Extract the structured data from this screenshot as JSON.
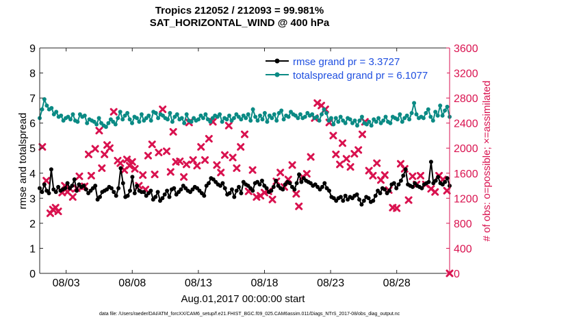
{
  "chart_data": {
    "type": "line",
    "title": "Tropics 212052 / 212093 = 99.981%",
    "subtitle": "SAT_HORIZONTAL_WIND @ 400 hPa",
    "xlabel": "Aug.01,2017 00:00:00 start",
    "ylabel": "rmse and totalspread",
    "ylabel_right": "# of obs: o=possible; ×=assimilated",
    "footnote": "data file: /Users/raeder/DAI/ATM_forcXX/CAM6_setup/f.e21.FHIST_BGC.f09_025.CAM6assim.011/Diags_NTrS_2017-08/obs_diag_output.nc",
    "xlim": [
      1.0,
      32.0
    ],
    "xticks": [
      3,
      8,
      13,
      18,
      23,
      28
    ],
    "xtick_labels": [
      "08/03",
      "08/08",
      "08/13",
      "08/18",
      "08/23",
      "08/28"
    ],
    "ylim": [
      0,
      9
    ],
    "yticks": [
      0,
      1,
      2,
      3,
      4,
      5,
      6,
      7,
      8,
      9
    ],
    "ylim_right": [
      0,
      3600
    ],
    "yticks_right": [
      0,
      400,
      800,
      1200,
      1600,
      2000,
      2400,
      2800,
      3200,
      3600
    ],
    "colors": {
      "rmse": "#000000",
      "spread": "#0a8a84",
      "obs": "#d9124f",
      "axis": "#222222",
      "legend_text": "#1f4fe0"
    },
    "series": [
      {
        "name": "rmse grand pr = 3.3727",
        "axis": "left",
        "marker": "circle",
        "values": [
          3.4,
          3.25,
          3.55,
          3.3,
          3.2,
          4.15,
          3.35,
          3.25,
          3.45,
          3.3,
          3.35,
          3.4,
          3.6,
          3.4,
          3.5,
          3.75,
          3.3,
          3.55,
          3.45,
          3.5,
          3.35,
          3.2,
          3.3,
          3.4,
          3.5,
          2.95,
          3.05,
          3.25,
          3.3,
          3.35,
          3.45,
          3.4,
          3.25,
          3.1,
          3.4,
          4.2,
          3.6,
          3.05,
          3.1,
          3.3,
          3.85,
          3.2,
          3.5,
          3.3,
          3.25,
          3.25,
          3.1,
          3.2,
          3.3,
          2.95,
          3.05,
          3.25,
          2.9,
          3.0,
          3.15,
          3.3,
          3.05,
          3.35,
          3.4,
          3.15,
          3.25,
          3.35,
          3.5,
          3.4,
          3.3,
          3.25,
          3.35,
          3.45,
          3.4,
          3.3,
          3.2,
          3.1,
          3.5,
          3.6,
          3.8,
          3.75,
          3.65,
          3.55,
          3.5,
          3.6,
          3.4,
          3.15,
          3.2,
          3.35,
          3.05,
          3.3,
          3.45,
          3.2,
          3.65,
          3.55,
          3.5,
          3.4,
          3.3,
          3.6,
          3.65,
          3.55,
          3.7,
          3.5,
          3.4,
          3.25,
          3.3,
          3.45,
          3.7,
          3.5,
          3.4,
          3.35,
          3.55,
          3.65,
          3.6,
          3.45,
          3.35,
          3.6,
          3.95,
          3.65,
          3.8,
          3.7,
          3.65,
          3.6,
          3.5,
          3.55,
          3.45,
          3.35,
          3.45,
          3.6,
          3.4,
          3.3,
          3.05,
          3.0,
          2.9,
          3.0,
          3.05,
          2.9,
          3.1,
          2.95,
          3.05,
          3.0,
          3.1,
          3.15,
          2.95,
          2.75,
          2.9,
          3.05,
          3.0,
          2.85,
          2.9,
          3.1,
          3.3,
          3.2,
          3.4,
          3.35,
          3.2,
          3.3,
          3.55,
          3.6,
          3.4,
          3.55,
          3.7,
          3.9,
          4.15,
          3.55,
          3.5,
          3.45,
          3.6,
          3.5,
          3.45,
          3.4,
          3.55,
          3.6,
          3.65,
          4.45,
          3.6,
          3.7,
          3.85,
          3.6,
          3.55,
          3.65,
          3.8,
          3.5
        ]
      },
      {
        "name": "totalspread grand pr = 6.1077",
        "axis": "left",
        "marker": "circle",
        "values": [
          6.2,
          6.55,
          6.95,
          6.7,
          6.55,
          6.6,
          6.35,
          6.45,
          6.25,
          6.3,
          6.1,
          6.2,
          6.25,
          6.15,
          6.35,
          6.1,
          6.05,
          6.35,
          6.25,
          6.3,
          6.0,
          6.15,
          6.1,
          6.05,
          5.95,
          6.2,
          6.0,
          5.9,
          5.85,
          6.0,
          6.15,
          6.05,
          5.95,
          6.2,
          6.45,
          6.15,
          6.3,
          6.4,
          6.15,
          6.0,
          6.25,
          6.2,
          6.05,
          6.35,
          6.1,
          6.2,
          6.3,
          6.1,
          6.45,
          6.4,
          6.2,
          6.35,
          6.3,
          6.2,
          6.15,
          6.4,
          6.05,
          6.25,
          6.35,
          6.15,
          6.2,
          6.0,
          6.35,
          6.1,
          6.05,
          6.2,
          6.1,
          6.15,
          6.3,
          6.2,
          6.35,
          6.15,
          6.05,
          6.2,
          6.3,
          6.25,
          6.35,
          6.05,
          6.2,
          6.15,
          6.3,
          6.1,
          6.2,
          6.35,
          6.25,
          6.15,
          6.3,
          6.2,
          6.35,
          6.1,
          6.55,
          6.25,
          6.1,
          6.3,
          6.15,
          6.4,
          6.05,
          6.3,
          6.2,
          6.35,
          6.1,
          6.4,
          6.5,
          6.15,
          6.3,
          6.25,
          6.45,
          6.35,
          6.3,
          6.2,
          6.35,
          6.2,
          6.25,
          6.4,
          6.3,
          6.35,
          6.2,
          6.25,
          6.1,
          6.35,
          6.55,
          6.4,
          6.1,
          6.2,
          5.95,
          6.2,
          6.05,
          6.25,
          6.1,
          6.0,
          6.2,
          6.15,
          6.0,
          6.1,
          5.9,
          6.1,
          6.25,
          6.0,
          5.95,
          6.05,
          5.9,
          6.15,
          6.05,
          6.2,
          6.0,
          6.1,
          6.25,
          6.05,
          6.0,
          6.25,
          6.2,
          6.15,
          6.35,
          6.05,
          6.2,
          6.3,
          6.15,
          6.4,
          6.8,
          6.35,
          6.2,
          6.25,
          6.2,
          6.4,
          6.55,
          6.25,
          6.1,
          6.45,
          6.3,
          6.7,
          6.3,
          6.5,
          6.65,
          6.25
        ]
      },
      {
        "name": "assimilated obs count",
        "axis": "right",
        "marker": "x",
        "points": [
          [
            1.2,
            2020
          ],
          [
            1.5,
            1480
          ],
          [
            1.8,
            960
          ],
          [
            2.0,
            1020
          ],
          [
            2.2,
            1050
          ],
          [
            2.4,
            990
          ],
          [
            2.7,
            1290
          ],
          [
            2.9,
            1400
          ],
          [
            3.1,
            1300
          ],
          [
            3.3,
            1350
          ],
          [
            3.5,
            1220
          ],
          [
            3.8,
            1360
          ],
          [
            4.0,
            1550
          ],
          [
            4.2,
            1380
          ],
          [
            4.4,
            1390
          ],
          [
            4.7,
            1900
          ],
          [
            4.9,
            1560
          ],
          [
            5.2,
            1990
          ],
          [
            5.5,
            2280
          ],
          [
            5.7,
            1680
          ],
          [
            5.9,
            1900
          ],
          [
            6.1,
            2050
          ],
          [
            6.3,
            2000
          ],
          [
            6.6,
            2580
          ],
          [
            6.9,
            1800
          ],
          [
            7.1,
            1760
          ],
          [
            7.4,
            1650
          ],
          [
            7.6,
            1820
          ],
          [
            7.8,
            1720
          ],
          [
            8.0,
            1780
          ],
          [
            8.2,
            1670
          ],
          [
            8.5,
            1400
          ],
          [
            8.8,
            1570
          ],
          [
            9.0,
            1340
          ],
          [
            9.2,
            1880
          ],
          [
            9.5,
            2060
          ],
          [
            9.7,
            1580
          ],
          [
            10.0,
            1930
          ],
          [
            10.3,
            2620
          ],
          [
            10.6,
            1950
          ],
          [
            10.9,
            1620
          ],
          [
            11.1,
            2260
          ],
          [
            11.3,
            1780
          ],
          [
            11.6,
            1790
          ],
          [
            11.9,
            1540
          ],
          [
            12.1,
            1740
          ],
          [
            12.3,
            2410
          ],
          [
            12.6,
            1810
          ],
          [
            12.9,
            1720
          ],
          [
            13.2,
            2020
          ],
          [
            13.5,
            1810
          ],
          [
            13.8,
            2150
          ],
          [
            14.1,
            2420
          ],
          [
            14.4,
            1730
          ],
          [
            14.7,
            1610
          ],
          [
            15.0,
            1890
          ],
          [
            15.3,
            2360
          ],
          [
            15.6,
            1850
          ],
          [
            15.9,
            1680
          ],
          [
            16.2,
            2020
          ],
          [
            16.5,
            2220
          ],
          [
            16.8,
            1310
          ],
          [
            17.1,
            1650
          ],
          [
            17.4,
            1220
          ],
          [
            17.7,
            1240
          ],
          [
            18.0,
            1290
          ],
          [
            18.3,
            1310
          ],
          [
            18.6,
            1180
          ],
          [
            18.9,
            1470
          ],
          [
            19.2,
            1610
          ],
          [
            19.5,
            1380
          ],
          [
            19.8,
            1500
          ],
          [
            20.1,
            1730
          ],
          [
            20.4,
            1270
          ],
          [
            20.6,
            1070
          ],
          [
            20.9,
            1540
          ],
          [
            21.2,
            1590
          ],
          [
            21.5,
            1860
          ],
          [
            21.8,
            2480
          ],
          [
            22.0,
            2720
          ],
          [
            22.3,
            2680
          ],
          [
            22.6,
            2620
          ],
          [
            22.9,
            2410
          ],
          [
            23.2,
            2200
          ],
          [
            23.4,
            1900
          ],
          [
            23.7,
            1740
          ],
          [
            23.9,
            2080
          ],
          [
            24.2,
            1830
          ],
          [
            24.5,
            1700
          ],
          [
            24.8,
            1910
          ],
          [
            25.1,
            1970
          ],
          [
            25.4,
            2220
          ],
          [
            25.6,
            2420
          ],
          [
            25.9,
            1640
          ],
          [
            26.2,
            1560
          ],
          [
            26.5,
            1760
          ],
          [
            26.8,
            1490
          ],
          [
            27.1,
            1570
          ],
          [
            27.4,
            1330
          ],
          [
            27.7,
            1050
          ],
          [
            28.0,
            1040
          ],
          [
            28.3,
            1750
          ],
          [
            28.6,
            1670
          ],
          [
            28.9,
            1170
          ],
          [
            29.2,
            1550
          ],
          [
            29.5,
            1420
          ],
          [
            29.8,
            1560
          ],
          [
            30.2,
            1420
          ],
          [
            30.6,
            1350
          ],
          [
            30.9,
            1300
          ],
          [
            31.2,
            1560
          ],
          [
            31.5,
            1500
          ],
          [
            31.8,
            1320
          ],
          [
            32.0,
            0
          ]
        ]
      }
    ],
    "legend": {
      "position": "top-right",
      "entries": [
        "rmse grand pr = 3.3727",
        "totalspread grand pr = 6.1077"
      ]
    }
  }
}
